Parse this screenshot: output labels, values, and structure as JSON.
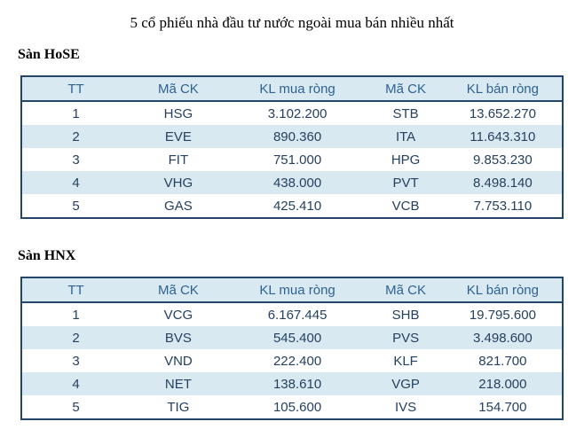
{
  "page": {
    "title": "5 cổ phiếu nhà đầu tư nước ngoài mua bán nhiều nhất"
  },
  "colors": {
    "table_border": "#24456a",
    "header_bg": "#d9e9f2",
    "alt_row_bg": "#d9e9f2",
    "header_text": "#2d6291",
    "body_text": "#25415f"
  },
  "tables": [
    {
      "section": "Sàn HoSE",
      "columns": [
        "TT",
        "Mã CK",
        "KL mua ròng",
        "Mã CK",
        "KL bán ròng"
      ],
      "rows": [
        [
          "1",
          "HSG",
          "3.102.200",
          "STB",
          "13.652.270"
        ],
        [
          "2",
          "EVE",
          "890.360",
          "ITA",
          "11.643.310"
        ],
        [
          "3",
          "FIT",
          "751.000",
          "HPG",
          "9.853.230"
        ],
        [
          "4",
          "VHG",
          "438.000",
          "PVT",
          "8.498.140"
        ],
        [
          "5",
          "GAS",
          "425.410",
          "VCB",
          "7.753.110"
        ]
      ]
    },
    {
      "section": "Sàn HNX",
      "columns": [
        "TT",
        "Mã CK",
        "KL mua ròng",
        "Mã CK",
        "KL bán ròng"
      ],
      "rows": [
        [
          "1",
          "VCG",
          "6.167.445",
          "SHB",
          "19.795.600"
        ],
        [
          "2",
          "BVS",
          "545.400",
          "PVS",
          "3.498.600"
        ],
        [
          "3",
          "VND",
          "222.400",
          "KLF",
          "821.700"
        ],
        [
          "4",
          "NET",
          "138.610",
          "VGP",
          "218.000"
        ],
        [
          "5",
          "TIG",
          "105.600",
          "IVS",
          "154.700"
        ]
      ]
    }
  ]
}
